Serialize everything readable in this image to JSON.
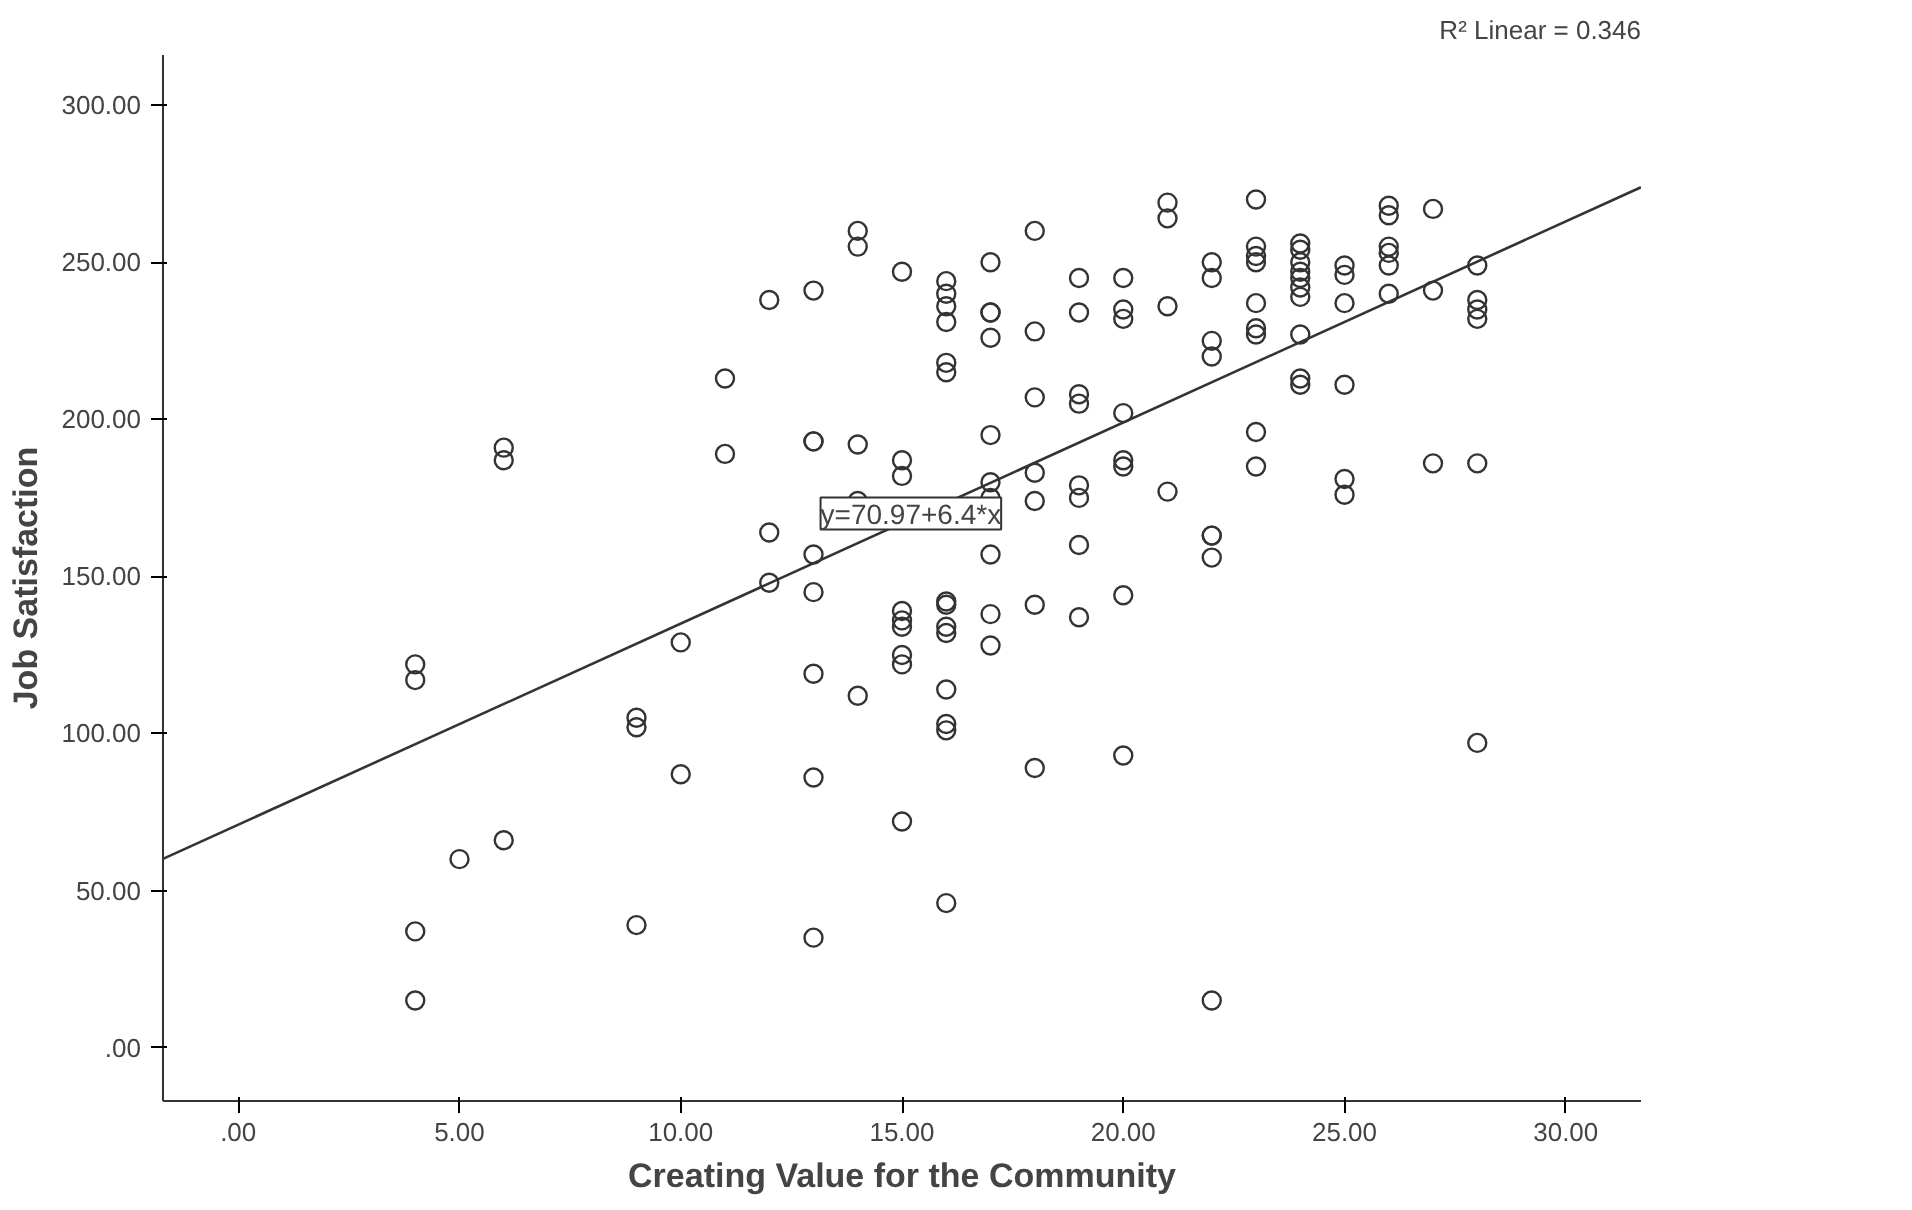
{
  "chart_data": {
    "type": "scatter",
    "xlabel": "Creating Value for the Community",
    "ylabel": "Job Satisfaction",
    "xlim": [
      -1.7,
      31.7
    ],
    "ylim": [
      -17,
      316
    ],
    "xticks": [
      {
        "value": 0,
        "label": ".00"
      },
      {
        "value": 5,
        "label": "5.00"
      },
      {
        "value": 10,
        "label": "10.00"
      },
      {
        "value": 15,
        "label": "15.00"
      },
      {
        "value": 20,
        "label": "20.00"
      },
      {
        "value": 25,
        "label": "25.00"
      },
      {
        "value": 30,
        "label": "30.00"
      }
    ],
    "yticks": [
      {
        "value": 0,
        "label": ".00"
      },
      {
        "value": 50,
        "label": "50.00"
      },
      {
        "value": 100,
        "label": "100.00"
      },
      {
        "value": 150,
        "label": "150.00"
      },
      {
        "value": 200,
        "label": "200.00"
      },
      {
        "value": 250,
        "label": "250.00"
      },
      {
        "value": 300,
        "label": "300.00"
      }
    ],
    "grid": false,
    "annotations": [
      "R² Linear = 0.346",
      {
        "text": "y=70.97+6.4*x",
        "x": 15.2,
        "y": 170
      }
    ],
    "series": [
      {
        "color": "#333333",
        "marker": "circle",
        "x": [
          4,
          4,
          4,
          4,
          5,
          6,
          6,
          6,
          9,
          9,
          9,
          10,
          10,
          11,
          11,
          12,
          12,
          12,
          13,
          13,
          13,
          13,
          13,
          13,
          13,
          13,
          14,
          14,
          14,
          14,
          14,
          15,
          15,
          15,
          15,
          15,
          15,
          15,
          15,
          15,
          16,
          16,
          16,
          16,
          16,
          16,
          16,
          16,
          16,
          16,
          16,
          16,
          16,
          16,
          17,
          17,
          17,
          17,
          17,
          17,
          17,
          17,
          17,
          17,
          18,
          18,
          18,
          18,
          18,
          18,
          18,
          19,
          19,
          19,
          19,
          19,
          19,
          19,
          19,
          20,
          20,
          20,
          20,
          20,
          20,
          20,
          20,
          21,
          21,
          21,
          21,
          22,
          22,
          22,
          22,
          22,
          22,
          22,
          22,
          23,
          23,
          23,
          23,
          23,
          23,
          23,
          23,
          23,
          24,
          24,
          24,
          24,
          24,
          24,
          24,
          24,
          24,
          24,
          25,
          25,
          25,
          25,
          25,
          25,
          26,
          26,
          26,
          26,
          26,
          26,
          27,
          27,
          27,
          28,
          28,
          28,
          28,
          28,
          28
        ],
        "values": [
          122,
          117,
          37,
          15,
          60,
          191,
          187,
          66,
          105,
          102,
          39,
          129,
          87,
          213,
          189,
          238,
          164,
          148,
          241,
          193,
          193,
          157,
          145,
          119,
          86,
          35,
          260,
          255,
          192,
          174,
          112,
          247,
          187,
          182,
          139,
          136,
          134,
          125,
          122,
          72,
          244,
          240,
          236,
          231,
          218,
          215,
          142,
          141,
          134,
          132,
          114,
          103,
          101,
          46,
          250,
          234,
          234,
          226,
          195,
          180,
          175,
          157,
          138,
          128,
          260,
          228,
          207,
          183,
          174,
          141,
          89,
          245,
          234,
          208,
          205,
          179,
          175,
          160,
          137,
          245,
          235,
          232,
          202,
          187,
          185,
          144,
          93,
          269,
          264,
          236,
          177,
          250,
          245,
          225,
          220,
          163,
          163,
          156,
          15,
          270,
          255,
          252,
          250,
          237,
          229,
          227,
          196,
          185,
          256,
          254,
          250,
          247,
          245,
          242,
          239,
          227,
          213,
          211,
          249,
          246,
          237,
          211,
          181,
          176,
          268,
          265,
          255,
          253,
          249,
          240,
          267,
          241,
          186,
          249,
          238,
          235,
          232,
          186,
          97
        ]
      },
      {
        "type": "line",
        "color": "#333333",
        "x": [
          -1.7,
          31.7
        ],
        "values": [
          60.1,
          273.9
        ]
      }
    ]
  }
}
